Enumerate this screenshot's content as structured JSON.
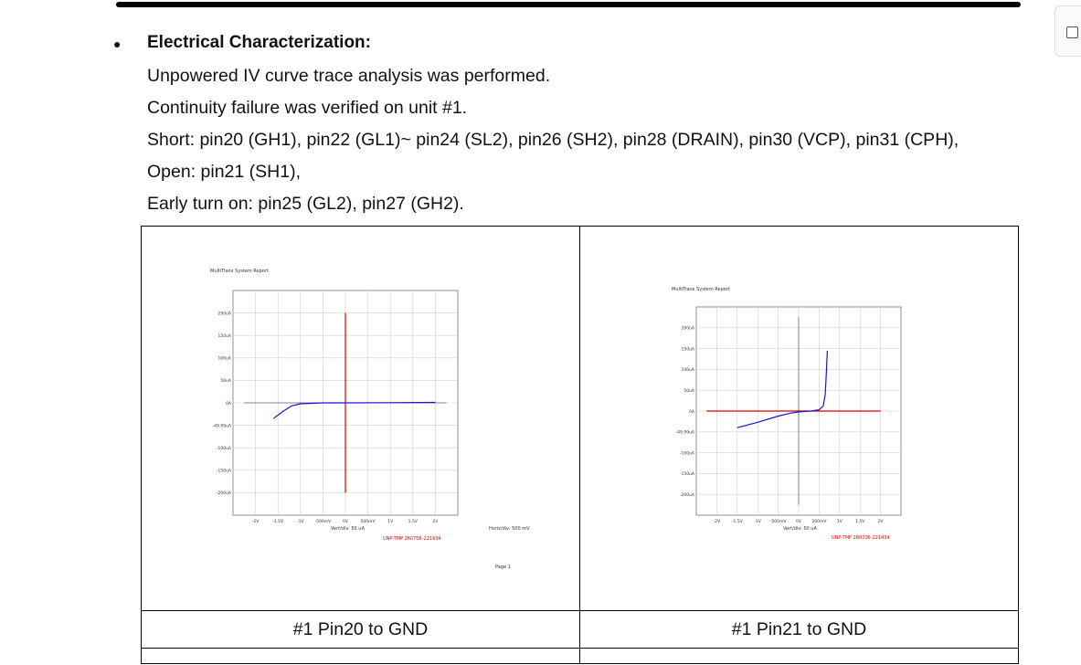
{
  "section": {
    "heading": "Electrical Characterization:",
    "lines": [
      "Unpowered IV curve trace analysis was performed.",
      "Continuity failure was verified on unit #1.",
      "Short: pin20 (GH1), pin22 (GL1)~ pin24 (SL2), pin26 (SH2), pin28 (DRAIN), pin30 (VCP), pin31 (CPH),",
      "Open: pin21 (SH1),",
      "Early turn on: pin25 (GL2), pin27 (GH2)."
    ]
  },
  "figures": [
    {
      "caption": "#1 Pin20 to GND",
      "report_title": "MultiTrace System Report",
      "y_ticks": [
        "200uA",
        "150uA",
        "100uA",
        "50uA",
        "0A",
        "-49.99uA",
        "-100uA",
        "-150uA",
        "-200uA"
      ],
      "x_ticks": [
        "-2V",
        "-1.5V",
        "-1V",
        "-500mV",
        "0V",
        "500mV",
        "1V",
        "1.5V",
        "2V"
      ],
      "vert_div": "Vert/div: 50 uA",
      "horiz_div": "Horiz/div: 500 mV",
      "serial": "UNP-TMP 260706-221434",
      "page": "Page 1",
      "chart_data": {
        "type": "line",
        "x_unit": "V",
        "y_unit": "uA",
        "xlim": [
          -2.5,
          2.5
        ],
        "ylim": [
          -250,
          250
        ],
        "curve": [
          [
            -1.6,
            -35
          ],
          [
            -1.4,
            -20
          ],
          [
            -1.2,
            -7
          ],
          [
            -1.0,
            -2
          ],
          [
            -0.5,
            0
          ],
          [
            0,
            0
          ],
          [
            1.0,
            0.5
          ],
          [
            2.0,
            1
          ]
        ]
      }
    },
    {
      "caption": "#1 Pin21 to GND",
      "report_title": "MultiTrace System Report",
      "y_ticks": [
        "200uA",
        "150uA",
        "100uA",
        "50uA",
        "0A",
        "-49.99uA",
        "-100uA",
        "-150uA",
        "-200uA"
      ],
      "x_ticks": [
        "-2V",
        "-1.5V",
        "-1V",
        "-500mV",
        "0V",
        "500mV",
        "1V",
        "1.5V",
        "2V"
      ],
      "vert_div": "Vert/div: 50 uA",
      "serial": "UNP-TMP 260706-221434",
      "chart_data": {
        "type": "line",
        "x_unit": "V",
        "y_unit": "uA",
        "xlim": [
          -2.5,
          2.5
        ],
        "ylim": [
          -250,
          250
        ],
        "curve": [
          [
            -1.5,
            -40
          ],
          [
            -1.0,
            -27
          ],
          [
            -0.5,
            -12
          ],
          [
            -0.2,
            -5
          ],
          [
            0,
            -2
          ],
          [
            0.3,
            0
          ],
          [
            0.5,
            3
          ],
          [
            0.6,
            12
          ],
          [
            0.65,
            40
          ],
          [
            0.68,
            100
          ],
          [
            0.7,
            145
          ]
        ]
      }
    }
  ]
}
